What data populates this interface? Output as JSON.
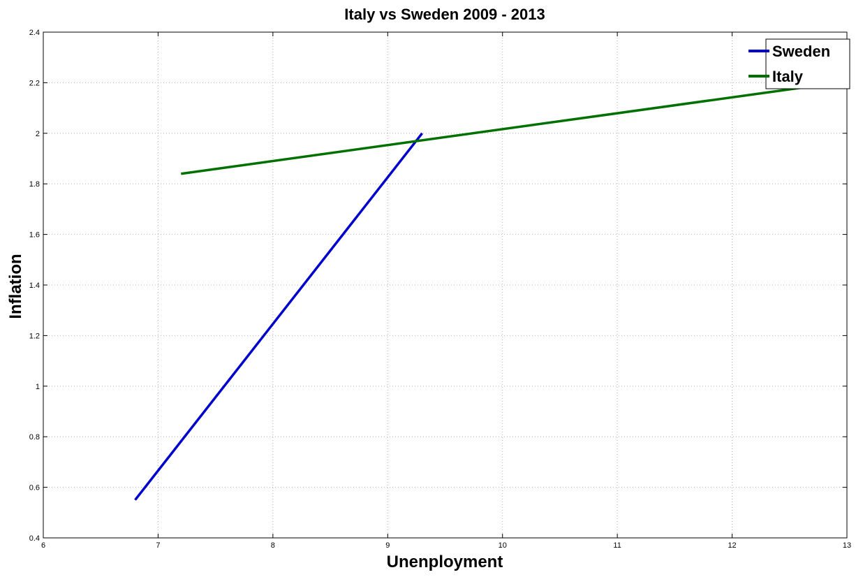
{
  "chart_data": {
    "type": "line",
    "title": "Italy vs Sweden 2009 - 2013",
    "xlabel": "Unenployment",
    "ylabel": "Inflation",
    "xlim": [
      6,
      13
    ],
    "ylim": [
      0.4,
      2.4
    ],
    "xticks": [
      "6",
      "7",
      "8",
      "9",
      "10",
      "11",
      "12",
      "13"
    ],
    "yticks": [
      "0.4",
      "0.6",
      "0.8",
      "1",
      "1.2",
      "1.4",
      "1.6",
      "1.8",
      "2",
      "2.2",
      "2.4"
    ],
    "grid": true,
    "legend_position": "top-right",
    "series": [
      {
        "name": "Sweden",
        "color": "#0000cc",
        "x": [
          6.8,
          9.3
        ],
        "y": [
          0.55,
          2.0
        ]
      },
      {
        "name": "Italy",
        "color": "#007000",
        "x": [
          7.2,
          12.6
        ],
        "y": [
          1.84,
          2.18
        ]
      }
    ]
  }
}
